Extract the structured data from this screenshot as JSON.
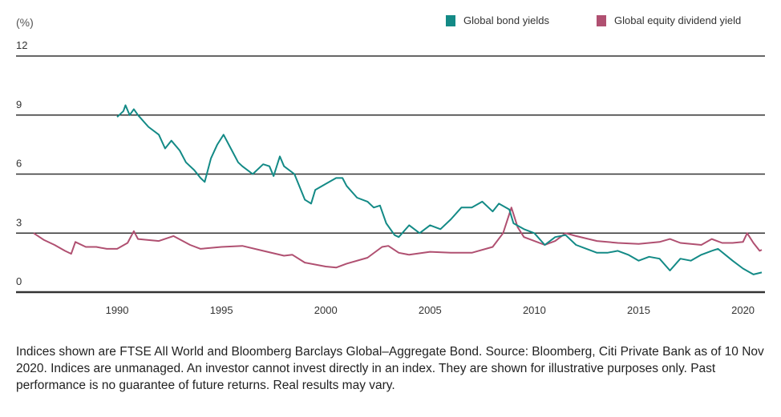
{
  "chart_data": {
    "type": "line",
    "unit_label": "(%)",
    "xlabel": "",
    "ylabel": "(%)",
    "xlim": [
      1986.0,
      2020.9
    ],
    "ylim": [
      0,
      12
    ],
    "yticks": [
      0,
      3,
      6,
      9,
      12
    ],
    "xticks": [
      1990,
      1995,
      2000,
      2005,
      2010,
      2015,
      2020
    ],
    "grid": "horizontal",
    "legend_position": "top-right",
    "series": [
      {
        "name": "Global bond yields",
        "color": "#138a86",
        "x": [
          1990.0,
          1990.3,
          1990.4,
          1990.6,
          1990.8,
          1991,
          1991.5,
          1992,
          1992.3,
          1992.6,
          1993,
          1993.3,
          1993.7,
          1994,
          1994.2,
          1994.5,
          1994.8,
          1995.1,
          1995.5,
          1995.8,
          1996,
          1996.5,
          1997,
          1997.3,
          1997.5,
          1997.8,
          1998,
          1998.5,
          1999,
          1999.3,
          1999.5,
          2000,
          2000.5,
          2000.8,
          2001,
          2001.5,
          2002,
          2002.3,
          2002.6,
          2002.9,
          2003.3,
          2003.5,
          2004,
          2004.5,
          2005,
          2005.5,
          2006,
          2006.5,
          2007,
          2007.5,
          2008,
          2008.3,
          2008.8,
          2009,
          2009.5,
          2010,
          2010.5,
          2011,
          2011.5,
          2012,
          2012.5,
          2013,
          2013.5,
          2014,
          2014.5,
          2015,
          2015.5,
          2016,
          2016.5,
          2017,
          2017.5,
          2018,
          2018.5,
          2018.8,
          2019.5,
          2020,
          2020.5,
          2020.9
        ],
        "y": [
          8.9,
          9.2,
          9.5,
          9.0,
          9.3,
          9.0,
          8.4,
          8.0,
          7.3,
          7.7,
          7.2,
          6.6,
          6.2,
          5.8,
          5.6,
          6.8,
          7.5,
          8.0,
          7.2,
          6.6,
          6.4,
          6.0,
          6.5,
          6.4,
          5.9,
          6.9,
          6.4,
          6.0,
          4.7,
          4.5,
          5.2,
          5.5,
          5.8,
          5.8,
          5.4,
          4.8,
          4.6,
          4.3,
          4.4,
          3.5,
          2.9,
          2.8,
          3.4,
          3.0,
          3.4,
          3.2,
          3.7,
          4.3,
          4.3,
          4.6,
          4.1,
          4.5,
          4.2,
          3.5,
          3.2,
          3.0,
          2.4,
          2.8,
          2.9,
          2.4,
          2.2,
          2.0,
          2.0,
          2.1,
          1.9,
          1.6,
          1.8,
          1.7,
          1.1,
          1.7,
          1.6,
          1.9,
          2.1,
          2.2,
          1.6,
          1.2,
          0.9,
          1.0
        ]
      },
      {
        "name": "Global equity dividend yield",
        "color": "#b05071",
        "x": [
          1986.0,
          1986.5,
          1987.0,
          1987.5,
          1987.8,
          1988.0,
          1988.5,
          1989,
          1989.5,
          1990,
          1990.5,
          1990.8,
          1991,
          1992,
          1992.7,
          1993.5,
          1994,
          1995,
          1996,
          1997,
          1998,
          1998.4,
          1999,
          2000,
          2000.5,
          2001,
          2002,
          2002.7,
          2003,
          2003.5,
          2004,
          2005,
          2006,
          2007,
          2008,
          2008.5,
          2008.9,
          2009.2,
          2009.5,
          2010,
          2010.5,
          2011,
          2011.5,
          2012,
          2013,
          2014,
          2015,
          2016,
          2016.5,
          2017,
          2018,
          2018.5,
          2019,
          2019.5,
          2020,
          2020.2,
          2020.5,
          2020.8,
          2020.9
        ],
        "y": [
          3.0,
          2.65,
          2.4,
          2.1,
          1.95,
          2.55,
          2.3,
          2.3,
          2.2,
          2.2,
          2.5,
          3.1,
          2.7,
          2.6,
          2.85,
          2.4,
          2.2,
          2.3,
          2.35,
          2.1,
          1.85,
          1.9,
          1.5,
          1.3,
          1.25,
          1.45,
          1.75,
          2.3,
          2.35,
          2.0,
          1.9,
          2.05,
          2.0,
          2.0,
          2.3,
          3.0,
          4.3,
          3.3,
          2.8,
          2.6,
          2.4,
          2.6,
          3.0,
          2.85,
          2.6,
          2.5,
          2.45,
          2.55,
          2.7,
          2.5,
          2.4,
          2.7,
          2.5,
          2.5,
          2.55,
          3.0,
          2.5,
          2.1,
          2.15
        ]
      }
    ]
  },
  "legend": {
    "bond": "Global bond yields",
    "equity": "Global equity dividend yield"
  },
  "footnote": "Indices shown are FTSE All World and Bloomberg Barclays Global–Aggregate Bond. Source: Bloomberg, Citi Private Bank as of 10 Nov 2020. Indices are unmanaged. An investor cannot invest directly in an index. They are shown for illustrative purposes only. Past performance is no guarantee of future returns. Real results may vary."
}
